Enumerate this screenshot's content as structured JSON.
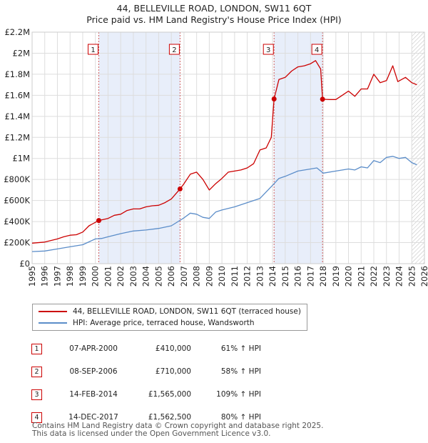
{
  "title_line1": "44, BELLEVILLE ROAD, LONDON, SW11 6QT",
  "title_line2": "Price paid vs. HM Land Registry's House Price Index (HPI)",
  "chart_data": {
    "type": "line",
    "title": "44, BELLEVILLE ROAD, LONDON, SW11 6QT — Price paid vs. HM Land Registry's House Price Index (HPI)",
    "xlim": [
      1995,
      2026
    ],
    "ylim": [
      0,
      2200000
    ],
    "x_ticks": [
      "1995",
      "1996",
      "1997",
      "1998",
      "1999",
      "2000",
      "2001",
      "2002",
      "2003",
      "2004",
      "2005",
      "2006",
      "2007",
      "2008",
      "2009",
      "2010",
      "2011",
      "2012",
      "2013",
      "2014",
      "2015",
      "2016",
      "2017",
      "2018",
      "2019",
      "2020",
      "2021",
      "2022",
      "2023",
      "2024",
      "2025",
      "2026"
    ],
    "y_ticks": [
      {
        "v": 0,
        "label": "£0"
      },
      {
        "v": 200000,
        "label": "£200K"
      },
      {
        "v": 400000,
        "label": "£400K"
      },
      {
        "v": 600000,
        "label": "£600K"
      },
      {
        "v": 800000,
        "label": "£800K"
      },
      {
        "v": 1000000,
        "label": "£1M"
      },
      {
        "v": 1200000,
        "label": "£1.2M"
      },
      {
        "v": 1400000,
        "label": "£1.4M"
      },
      {
        "v": 1600000,
        "label": "£1.6M"
      },
      {
        "v": 1800000,
        "label": "£1.8M"
      },
      {
        "v": 2000000,
        "label": "£2M"
      },
      {
        "v": 2200000,
        "label": "£2.2M"
      }
    ],
    "series": [
      {
        "name": "44, BELLEVILLE ROAD, LONDON, SW11 6QT (terraced house)",
        "color": "#cc0000",
        "points": [
          [
            1995.0,
            195000
          ],
          [
            1996.0,
            205000
          ],
          [
            1997.0,
            235000
          ],
          [
            1997.5,
            255000
          ],
          [
            1998.0,
            270000
          ],
          [
            1998.5,
            275000
          ],
          [
            1999.0,
            300000
          ],
          [
            1999.5,
            360000
          ],
          [
            2000.27,
            410000
          ],
          [
            2001.0,
            430000
          ],
          [
            2001.5,
            460000
          ],
          [
            2002.0,
            470000
          ],
          [
            2002.5,
            505000
          ],
          [
            2003.0,
            520000
          ],
          [
            2003.5,
            520000
          ],
          [
            2004.0,
            540000
          ],
          [
            2004.5,
            550000
          ],
          [
            2005.0,
            555000
          ],
          [
            2005.5,
            580000
          ],
          [
            2006.0,
            615000
          ],
          [
            2006.69,
            710000
          ],
          [
            2007.0,
            760000
          ],
          [
            2007.5,
            850000
          ],
          [
            2008.0,
            870000
          ],
          [
            2008.5,
            800000
          ],
          [
            2009.0,
            700000
          ],
          [
            2009.5,
            760000
          ],
          [
            2010.0,
            810000
          ],
          [
            2010.5,
            870000
          ],
          [
            2011.0,
            880000
          ],
          [
            2011.5,
            890000
          ],
          [
            2012.0,
            910000
          ],
          [
            2012.5,
            950000
          ],
          [
            2013.0,
            1080000
          ],
          [
            2013.5,
            1100000
          ],
          [
            2013.9,
            1200000
          ],
          [
            2014.12,
            1565000
          ],
          [
            2014.5,
            1750000
          ],
          [
            2015.0,
            1770000
          ],
          [
            2015.5,
            1830000
          ],
          [
            2016.0,
            1870000
          ],
          [
            2016.5,
            1880000
          ],
          [
            2017.0,
            1900000
          ],
          [
            2017.4,
            1930000
          ],
          [
            2017.8,
            1850000
          ],
          [
            2017.95,
            1562500
          ],
          [
            2018.5,
            1560000
          ],
          [
            2019.0,
            1560000
          ],
          [
            2019.5,
            1600000
          ],
          [
            2020.0,
            1640000
          ],
          [
            2020.5,
            1590000
          ],
          [
            2021.0,
            1660000
          ],
          [
            2021.5,
            1660000
          ],
          [
            2022.0,
            1800000
          ],
          [
            2022.5,
            1720000
          ],
          [
            2023.0,
            1740000
          ],
          [
            2023.5,
            1880000
          ],
          [
            2023.9,
            1730000
          ],
          [
            2024.5,
            1770000
          ],
          [
            2025.0,
            1720000
          ],
          [
            2025.4,
            1700000
          ]
        ]
      },
      {
        "name": "HPI: Average price, terraced house, Wandsworth",
        "color": "#5b8dc9",
        "points": [
          [
            1995.0,
            115000
          ],
          [
            1996.0,
            120000
          ],
          [
            1997.0,
            140000
          ],
          [
            1998.0,
            160000
          ],
          [
            1999.0,
            180000
          ],
          [
            2000.0,
            235000
          ],
          [
            2000.5,
            240000
          ],
          [
            2001.0,
            255000
          ],
          [
            2002.0,
            285000
          ],
          [
            2003.0,
            310000
          ],
          [
            2004.0,
            320000
          ],
          [
            2005.0,
            335000
          ],
          [
            2006.0,
            360000
          ],
          [
            2007.0,
            435000
          ],
          [
            2007.5,
            480000
          ],
          [
            2008.0,
            470000
          ],
          [
            2008.5,
            440000
          ],
          [
            2009.0,
            430000
          ],
          [
            2009.5,
            490000
          ],
          [
            2010.0,
            510000
          ],
          [
            2011.0,
            540000
          ],
          [
            2012.0,
            580000
          ],
          [
            2013.0,
            620000
          ],
          [
            2014.0,
            745000
          ],
          [
            2014.5,
            810000
          ],
          [
            2015.0,
            830000
          ],
          [
            2016.0,
            880000
          ],
          [
            2017.0,
            900000
          ],
          [
            2017.5,
            910000
          ],
          [
            2018.0,
            860000
          ],
          [
            2019.0,
            880000
          ],
          [
            2020.0,
            900000
          ],
          [
            2020.5,
            890000
          ],
          [
            2021.0,
            920000
          ],
          [
            2021.5,
            910000
          ],
          [
            2022.0,
            980000
          ],
          [
            2022.5,
            960000
          ],
          [
            2023.0,
            1010000
          ],
          [
            2023.5,
            1020000
          ],
          [
            2024.0,
            1000000
          ],
          [
            2024.5,
            1010000
          ],
          [
            2025.0,
            960000
          ],
          [
            2025.4,
            940000
          ]
        ]
      }
    ],
    "sales": [
      {
        "n": "1",
        "x": 2000.27,
        "y": 410000,
        "date": "07-APR-2000",
        "price": "£410,000",
        "hpi": "61% ↑ HPI"
      },
      {
        "n": "2",
        "x": 2006.69,
        "y": 710000,
        "date": "08-SEP-2006",
        "price": "£710,000",
        "hpi": "58% ↑ HPI"
      },
      {
        "n": "3",
        "x": 2014.12,
        "y": 1565000,
        "date": "14-FEB-2014",
        "price": "£1,565,000",
        "hpi": "109% ↑ HPI"
      },
      {
        "n": "4",
        "x": 2017.95,
        "y": 1562500,
        "date": "14-DEC-2017",
        "price": "£1,562,500",
        "hpi": "80% ↑ HPI"
      }
    ],
    "shaded_spans": [
      [
        2000.27,
        2006.69
      ],
      [
        2014.12,
        2017.95
      ]
    ],
    "future_hatch_from": 2025.0
  },
  "legend": {
    "property_label": "44, BELLEVILLE ROAD, LONDON, SW11 6QT (terraced house)",
    "hpi_label": "HPI: Average price, terraced house, Wandsworth",
    "property_color": "#cc0000",
    "hpi_color": "#5b8dc9"
  },
  "table": [
    {
      "n": "1",
      "date": "07-APR-2000",
      "price": "£410,000",
      "hpi": "61% ↑ HPI"
    },
    {
      "n": "2",
      "date": "08-SEP-2006",
      "price": "£710,000",
      "hpi": "58% ↑ HPI"
    },
    {
      "n": "3",
      "date": "14-FEB-2014",
      "price": "£1,565,000",
      "hpi": "109% ↑ HPI"
    },
    {
      "n": "4",
      "date": "14-DEC-2017",
      "price": "£1,562,500",
      "hpi": "80% ↑ HPI"
    }
  ],
  "footer_line1": "Contains HM Land Registry data © Crown copyright and database right 2025.",
  "footer_line2": "This data is licensed under the Open Government Licence v3.0."
}
